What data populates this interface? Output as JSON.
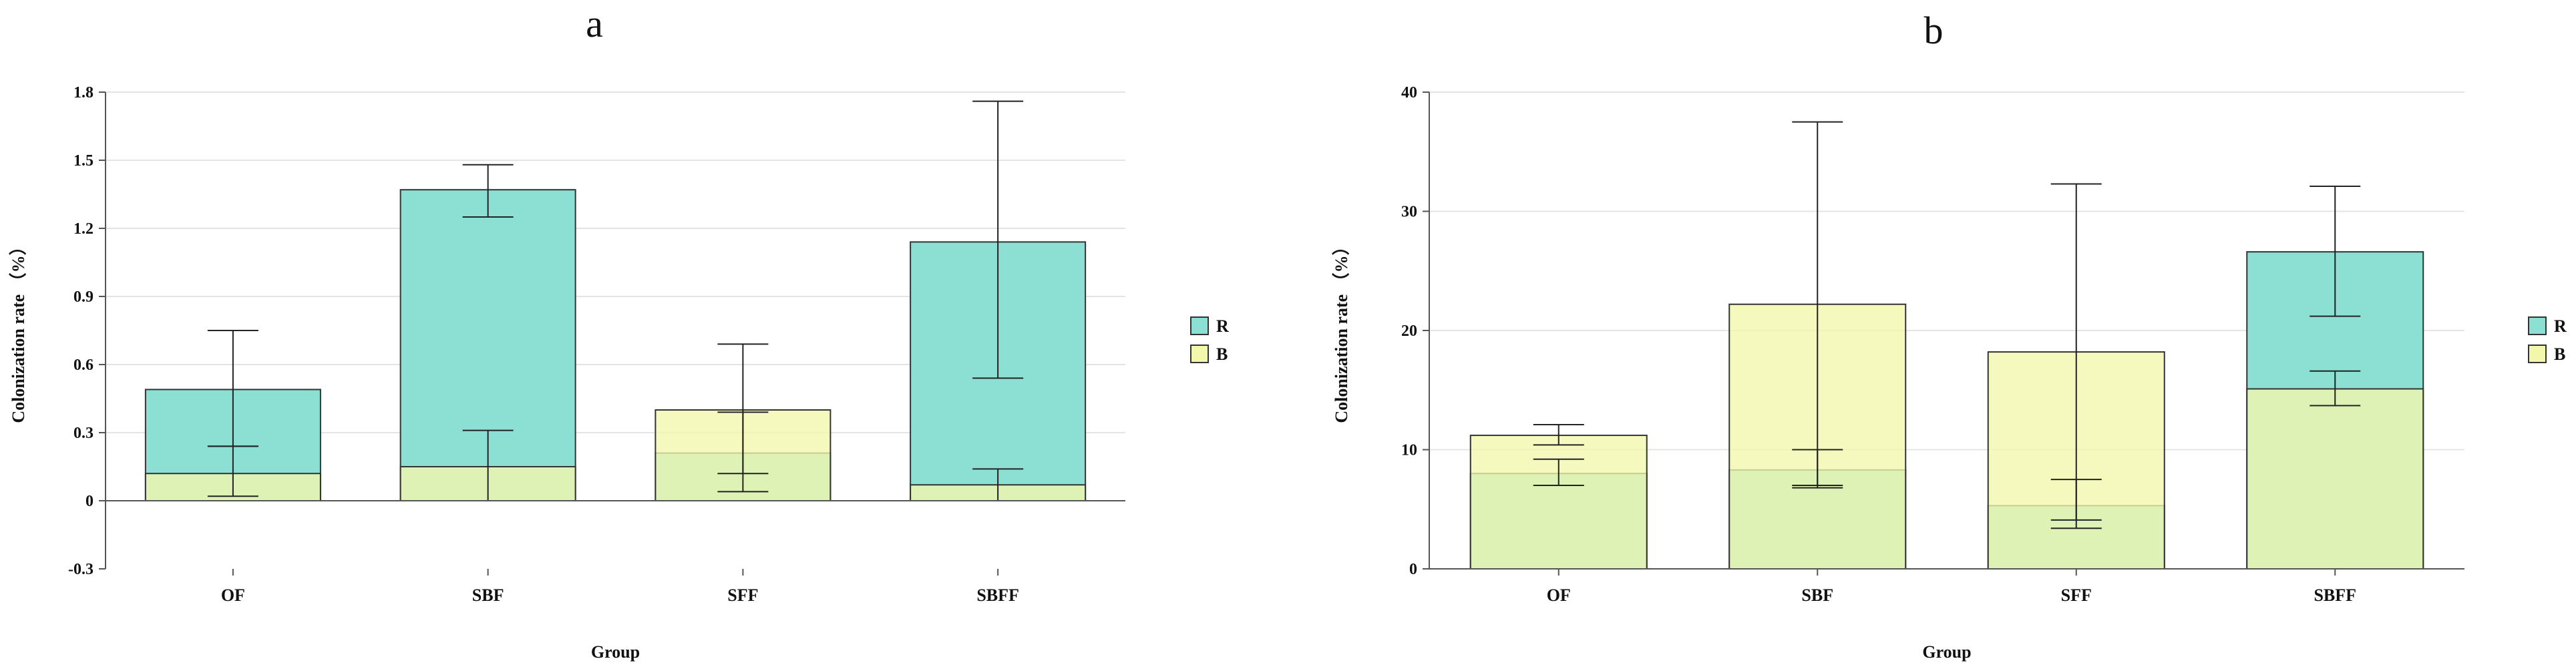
{
  "chart_data": [
    {
      "type": "bar",
      "title": "a",
      "xlabel": "Group",
      "ylabel": "Colonization rate （%）",
      "categories": [
        "OF",
        "SBF",
        "SFF",
        "SBFF"
      ],
      "ylim": [
        -0.3,
        1.8
      ],
      "yticks": [
        -0.3,
        0,
        0.3,
        0.6,
        0.9,
        1.2,
        1.5,
        1.8
      ],
      "ytick_labels": [
        "-0.3",
        "0",
        "0.3",
        "0.6",
        "0.9",
        "1.2",
        "1.5",
        "1.8"
      ],
      "grid": true,
      "legend_position": "right",
      "series": [
        {
          "name": "R",
          "color": "#8ce0d3",
          "values": [
            0.49,
            1.37,
            0.21,
            1.14
          ],
          "err_low": [
            0.24,
            1.25,
            0.04,
            0.54
          ],
          "err_high": [
            0.75,
            1.48,
            0.39,
            1.76
          ]
        },
        {
          "name": "B",
          "color": "#f3f7ac",
          "values": [
            0.12,
            0.15,
            0.4,
            0.07
          ],
          "err_low": [
            0.02,
            0.0,
            0.12,
            0.0
          ],
          "err_high": [
            0.24,
            0.31,
            0.69,
            0.14
          ]
        }
      ]
    },
    {
      "type": "bar",
      "title": "b",
      "xlabel": "Group",
      "ylabel": "Colonization rate （%）",
      "categories": [
        "OF",
        "SBF",
        "SFF",
        "SBFF"
      ],
      "ylim": [
        0,
        40
      ],
      "yticks": [
        0,
        10,
        20,
        30,
        40
      ],
      "ytick_labels": [
        "0",
        "10",
        "20",
        "30",
        "40"
      ],
      "grid": true,
      "legend_position": "right",
      "series": [
        {
          "name": "R",
          "color": "#8ce0d3",
          "values": [
            8.0,
            8.3,
            5.3,
            26.6
          ],
          "err_low": [
            7.0,
            7.0,
            3.4,
            21.2
          ],
          "err_high": [
            9.2,
            10.0,
            7.5,
            32.1
          ]
        },
        {
          "name": "B",
          "color": "#f3f7ac",
          "values": [
            11.2,
            22.2,
            18.2,
            15.1
          ],
          "err_low": [
            10.4,
            6.8,
            4.1,
            13.7
          ],
          "err_high": [
            12.1,
            37.5,
            32.3,
            16.6
          ]
        }
      ]
    }
  ]
}
